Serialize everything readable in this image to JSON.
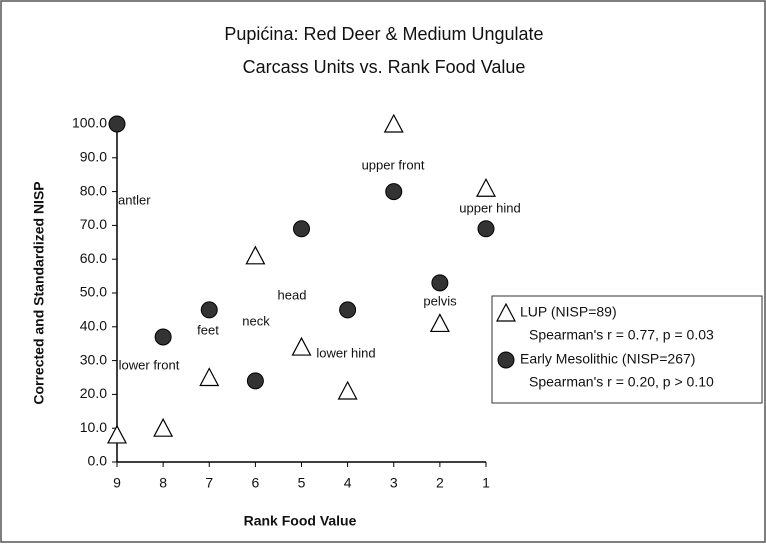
{
  "chart_data": {
    "type": "scatter",
    "title": [
      "Pupićina: Red Deer & Medium Ungulate",
      "Carcass Units vs. Rank Food Value"
    ],
    "x_label": "Rank Food Value",
    "y_label": "Corrected and Standardized NISP",
    "xlim": [
      9,
      1
    ],
    "xticks": [
      9,
      8,
      7,
      6,
      5,
      4,
      3,
      2,
      1
    ],
    "ylim": [
      0,
      100
    ],
    "yticks": [
      {
        "value": 0,
        "label": "0.0"
      },
      {
        "value": 10,
        "label": "10.0"
      },
      {
        "value": 20,
        "label": "20.0"
      },
      {
        "value": 30,
        "label": "30.0"
      },
      {
        "value": 40,
        "label": "40.0"
      },
      {
        "value": 50,
        "label": "50.0"
      },
      {
        "value": 60,
        "label": "60.0"
      },
      {
        "value": 70,
        "label": "70.0"
      },
      {
        "value": 80,
        "label": "80.0"
      },
      {
        "value": 90,
        "label": "90.0"
      },
      {
        "value": {
          "value": 100,
          "label": "100.0"
        },
        "label": "100.0"
      }
    ],
    "series": [
      {
        "name": "LUP (NISP=89)",
        "stats": "Spearman's r = 0.77, p = 0.03",
        "marker": "triangle",
        "color": "#ffffff",
        "x": [
          9,
          8,
          7,
          6,
          5,
          4,
          3,
          2,
          1
        ],
        "values": [
          8,
          10,
          25,
          61,
          34,
          21,
          100,
          41,
          81
        ]
      },
      {
        "name": "Early Mesolithic (NISP=267)",
        "stats": "Spearman's r = 0.20, p > 0.10",
        "marker": "circle",
        "color": "#333333",
        "x": [
          9,
          8,
          7,
          6,
          5,
          4,
          3,
          2,
          1
        ],
        "values": [
          100,
          37,
          45,
          24,
          69,
          45,
          80,
          53,
          69
        ]
      }
    ],
    "annotations": [
      "antler",
      "upper front",
      "upper hind",
      "head",
      "neck",
      "feet",
      "pelvis",
      "lower front",
      "lower hind"
    ]
  }
}
